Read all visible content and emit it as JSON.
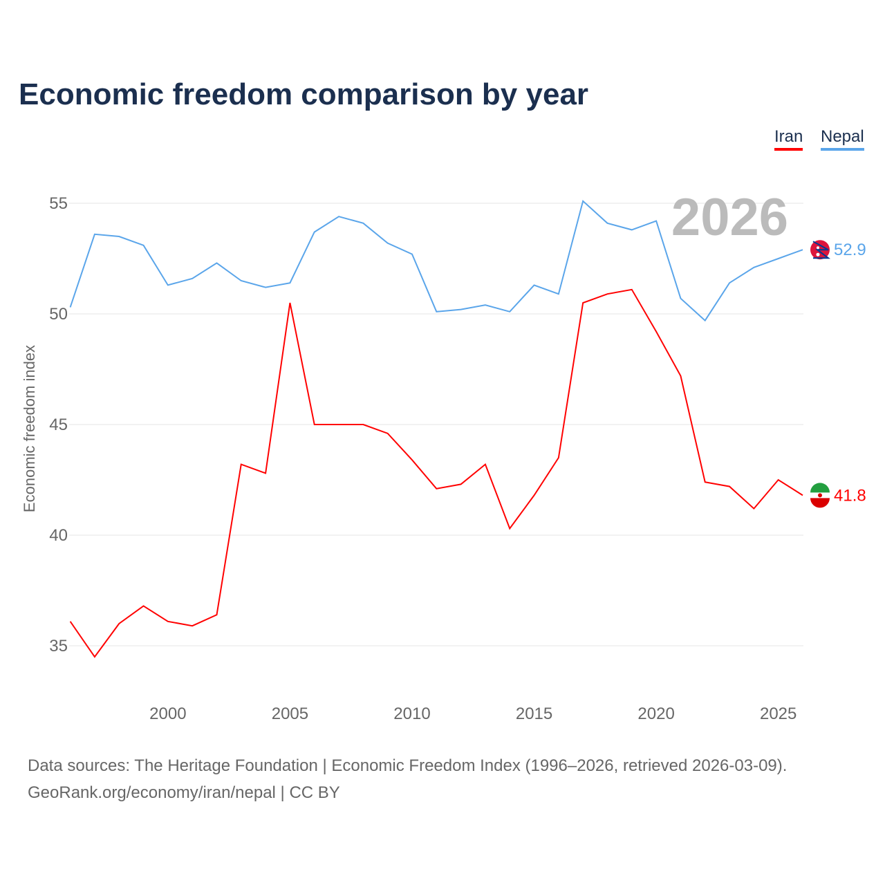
{
  "chart_data": {
    "type": "line",
    "title": "Economic freedom comparison by year",
    "ylabel": "Economic freedom index",
    "xlabel": "",
    "ylim": [
      33,
      56.5
    ],
    "xlim": [
      1996,
      2026
    ],
    "yticks": [
      35,
      40,
      45,
      50,
      55
    ],
    "xticks": [
      2000,
      2005,
      2010,
      2015,
      2020,
      2025
    ],
    "grid": true,
    "legend_placement": "top-right",
    "year_label": "2026",
    "x": [
      1996,
      1997,
      1998,
      1999,
      2000,
      2001,
      2002,
      2003,
      2004,
      2005,
      2006,
      2007,
      2008,
      2009,
      2010,
      2011,
      2012,
      2013,
      2014,
      2015,
      2016,
      2017,
      2018,
      2019,
      2020,
      2021,
      2022,
      2023,
      2024,
      2025,
      2026
    ],
    "series": [
      {
        "name": "Iran",
        "color": "#ff0000",
        "end_label": "41.8",
        "values": [
          36.1,
          34.5,
          36.0,
          36.8,
          36.1,
          35.9,
          36.4,
          43.2,
          42.8,
          50.5,
          45.0,
          45.0,
          45.0,
          44.6,
          43.4,
          42.1,
          42.3,
          43.2,
          40.3,
          41.8,
          43.5,
          50.5,
          50.9,
          51.1,
          49.2,
          47.2,
          42.4,
          42.2,
          41.2,
          42.5,
          41.8
        ]
      },
      {
        "name": "Nepal",
        "color": "#5aa5ea",
        "end_label": "52.9",
        "values": [
          50.3,
          53.6,
          53.5,
          53.1,
          51.3,
          51.6,
          52.3,
          51.5,
          51.2,
          51.4,
          53.7,
          54.4,
          54.1,
          53.2,
          52.7,
          50.1,
          50.2,
          50.4,
          50.1,
          51.3,
          50.9,
          55.1,
          54.1,
          53.8,
          54.2,
          50.7,
          49.7,
          51.4,
          52.1,
          52.5,
          52.9
        ]
      }
    ]
  },
  "footer": {
    "line1": "Data sources: The Heritage Foundation | Economic Freedom Index (1996–2026, retrieved 2026-03-09).",
    "line2": "GeoRank.org/economy/iran/nepal | CC BY"
  }
}
